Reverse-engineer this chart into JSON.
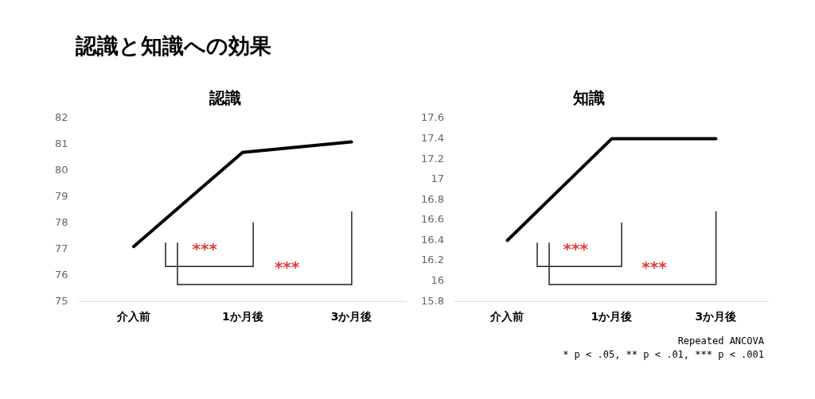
{
  "chart_data": [
    {
      "type": "line",
      "title": "認識と知識への効果",
      "subtitle": "認識",
      "categories": [
        "介入前",
        "1か月後",
        "3か月後"
      ],
      "series": [
        {
          "color": "#000000",
          "values": [
            77.1,
            80.7,
            81.1
          ]
        }
      ],
      "ylim": [
        75,
        82
      ],
      "yticks": [
        75,
        76,
        77,
        78,
        79,
        80,
        81,
        82
      ],
      "grid": false,
      "legend": false,
      "marker": "none",
      "line_style": "solid",
      "annotations": [
        "***",
        "***"
      ]
    },
    {
      "type": "line",
      "title": "知識",
      "categories": [
        "介入前",
        "1か月後",
        "3か月後"
      ],
      "series": [
        {
          "color": "#000000",
          "values": [
            16.4,
            17.4,
            17.4
          ]
        }
      ],
      "ylim": [
        15.8,
        17.6
      ],
      "yticks": [
        15.8,
        16,
        16.2,
        16.4,
        16.6,
        16.8,
        17,
        17.2,
        17.4,
        17.6
      ],
      "grid": false,
      "legend": false,
      "marker": "none",
      "line_style": "solid",
      "annotations": [
        "***",
        "***",
        "Repeated ANCOVA",
        "* p < .05, ** p < .01, *** p < .001"
      ]
    }
  ]
}
